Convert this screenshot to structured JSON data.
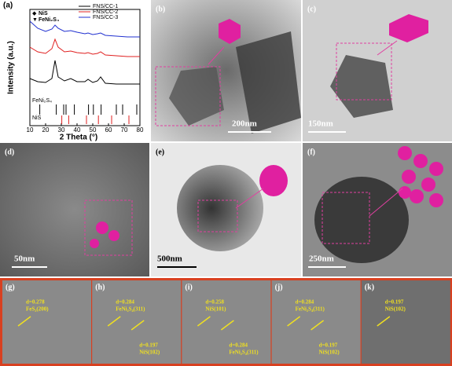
{
  "chart_data": {
    "type": "line",
    "panel_label": "(a)",
    "x_label": "2 Theta (°)",
    "y_label": "Intensity (a.u.)",
    "x": [
      10,
      15,
      20,
      24,
      26,
      28,
      32,
      36,
      40,
      45,
      47,
      50,
      53,
      55,
      58,
      65,
      72,
      80
    ],
    "series": [
      {
        "name": "FNS/CC-1",
        "color": "#000000",
        "values": [
          22,
          18,
          17,
          22,
          45,
          24,
          19,
          22,
          18,
          18,
          21,
          17,
          19,
          24,
          16,
          15,
          15,
          15
        ]
      },
      {
        "name": "FNS/CC-2",
        "color": "#e02020",
        "values": [
          62,
          56,
          54,
          60,
          72,
          62,
          56,
          57,
          55,
          54,
          55,
          53,
          54,
          56,
          52,
          51,
          50,
          50
        ]
      },
      {
        "name": "FNS/CC-3",
        "color": "#2030d0",
        "values": [
          95,
          86,
          82,
          85,
          90,
          86,
          82,
          83,
          81,
          79,
          80,
          78,
          79,
          80,
          77,
          76,
          75,
          75
        ]
      }
    ],
    "references": [
      {
        "name": "FeNi₂S₄",
        "color": "#000000",
        "positions": [
          16.3,
          26.8,
          31.5,
          33,
          38.3,
          47.3,
          50.4,
          55.3,
          65,
          69,
          78
        ]
      },
      {
        "name": "NiS",
        "color": "#e02020",
        "positions": [
          30.3,
          34.7,
          46,
          53.6,
          62,
          73
        ]
      }
    ],
    "peak_markers": [
      {
        "symbol": "◆",
        "name": "NiS"
      },
      {
        "symbol": "▼",
        "name": "FeNi₂S₄"
      }
    ],
    "xlim": [
      10,
      80
    ],
    "xticks": [
      10,
      20,
      30,
      40,
      50,
      60,
      70,
      80
    ],
    "ylim": [
      0,
      100
    ]
  },
  "panels": [
    {
      "label": "(b)",
      "scale_bar": "200nm"
    },
    {
      "label": "(c)",
      "scale_bar": "150nm"
    },
    {
      "label": "(d)",
      "scale_bar": "50nm"
    },
    {
      "label": "(e)",
      "scale_bar": "500nm"
    },
    {
      "label": "(f)",
      "scale_bar": "250nm"
    }
  ],
  "lattice": [
    {
      "label": "(g)",
      "notes": [
        {
          "d": "d=0.278",
          "plane": "FeS₂(200)"
        }
      ]
    },
    {
      "label": "(h)",
      "notes": [
        {
          "d": "d=0.284",
          "plane": "FeNi₂S₄(311)"
        },
        {
          "d": "d=0.197",
          "plane": "NiS(102)"
        }
      ]
    },
    {
      "label": "(i)",
      "notes": [
        {
          "d": "d=0.258",
          "plane": "NiS(101)"
        },
        {
          "d": "d=0.284",
          "plane": "FeNi₂S₄(311)"
        }
      ]
    },
    {
      "label": "(j)",
      "notes": [
        {
          "d": "d=0.284",
          "plane": "FeNi₂S₄(311)"
        },
        {
          "d": "d=0.197",
          "plane": "NiS(102)"
        }
      ]
    },
    {
      "label": "(k)",
      "notes": [
        {
          "d": "d=0.197",
          "plane": "NiS(102)"
        }
      ]
    }
  ]
}
